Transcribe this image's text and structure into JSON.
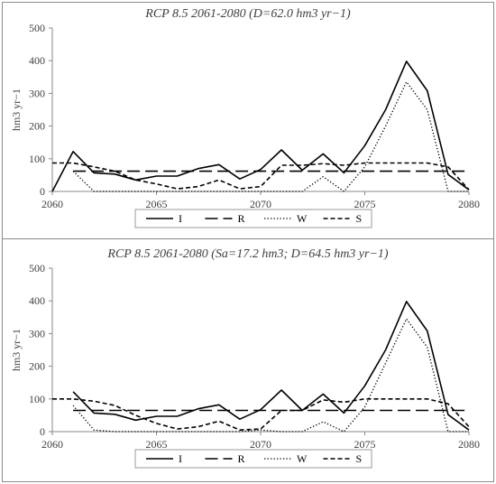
{
  "chart_data": [
    {
      "type": "line",
      "title": "RCP 8.5 2061-2080 (D=62.0 hm3 yr−1)",
      "xlabel": "",
      "ylabel": "hm3 yr−1",
      "xlim": [
        2060,
        2080
      ],
      "ylim": [
        0,
        500
      ],
      "x_ticks": [
        "2060",
        "2065",
        "2070",
        "2075",
        "2080"
      ],
      "y_ticks": [
        "0",
        "100",
        "200",
        "300",
        "400",
        "500"
      ],
      "legend_position": "bottom",
      "grid": false,
      "series": [
        {
          "name": "I",
          "style": "solid",
          "points": [
            [
              2060,
              0
            ],
            [
              2061,
              122
            ],
            [
              2062,
              57
            ],
            [
              2063,
              53
            ],
            [
              2064,
              35
            ],
            [
              2065,
              47
            ],
            [
              2066,
              47
            ],
            [
              2067,
              70
            ],
            [
              2068,
              82
            ],
            [
              2069,
              38
            ],
            [
              2070,
              67
            ],
            [
              2071,
              127
            ],
            [
              2072,
              65
            ],
            [
              2073,
              115
            ],
            [
              2074,
              57
            ],
            [
              2075,
              140
            ],
            [
              2076,
              250
            ],
            [
              2077,
              398
            ],
            [
              2078,
              308
            ],
            [
              2079,
              52
            ],
            [
              2080,
              5
            ]
          ]
        },
        {
          "name": "R",
          "style": "longdash",
          "points": [
            [
              2061,
              62
            ],
            [
              2062,
              62
            ],
            [
              2063,
              62
            ],
            [
              2064,
              62
            ],
            [
              2065,
              62
            ],
            [
              2066,
              62
            ],
            [
              2067,
              62
            ],
            [
              2068,
              62
            ],
            [
              2069,
              62
            ],
            [
              2070,
              62
            ],
            [
              2071,
              62
            ],
            [
              2072,
              62
            ],
            [
              2073,
              62
            ],
            [
              2074,
              62
            ],
            [
              2075,
              62
            ],
            [
              2076,
              62
            ],
            [
              2077,
              62
            ],
            [
              2078,
              62
            ],
            [
              2079,
              62
            ],
            [
              2080,
              62
            ]
          ]
        },
        {
          "name": "W",
          "style": "dotted",
          "points": [
            [
              2061,
              62
            ],
            [
              2062,
              0
            ],
            [
              2063,
              0
            ],
            [
              2064,
              0
            ],
            [
              2065,
              0
            ],
            [
              2066,
              0
            ],
            [
              2067,
              0
            ],
            [
              2068,
              0
            ],
            [
              2069,
              0
            ],
            [
              2070,
              0
            ],
            [
              2071,
              0
            ],
            [
              2072,
              0
            ],
            [
              2073,
              45
            ],
            [
              2074,
              0
            ],
            [
              2075,
              75
            ],
            [
              2076,
              200
            ],
            [
              2077,
              335
            ],
            [
              2078,
              250
            ],
            [
              2079,
              0
            ],
            [
              2080,
              0
            ]
          ]
        },
        {
          "name": "S",
          "style": "shortdash",
          "points": [
            [
              2060,
              87
            ],
            [
              2061,
              87
            ],
            [
              2062,
              75
            ],
            [
              2063,
              62
            ],
            [
              2064,
              35
            ],
            [
              2065,
              23
            ],
            [
              2066,
              8
            ],
            [
              2067,
              15
            ],
            [
              2068,
              35
            ],
            [
              2069,
              8
            ],
            [
              2070,
              15
            ],
            [
              2071,
              80
            ],
            [
              2072,
              80
            ],
            [
              2073,
              85
            ],
            [
              2074,
              80
            ],
            [
              2075,
              87
            ],
            [
              2076,
              87
            ],
            [
              2077,
              87
            ],
            [
              2078,
              87
            ],
            [
              2079,
              75
            ],
            [
              2080,
              5
            ]
          ]
        }
      ]
    },
    {
      "type": "line",
      "title": "RCP 8.5 2061-2080 (Sa=17.2 hm3; D=64.5  hm3 yr−1)",
      "xlabel": "",
      "ylabel": "hm3 yr−1",
      "xlim": [
        2060,
        2080
      ],
      "ylim": [
        0,
        500
      ],
      "x_ticks": [
        "2060",
        "2065",
        "2070",
        "2075",
        "2080"
      ],
      "y_ticks": [
        "0",
        "100",
        "200",
        "300",
        "400",
        "500"
      ],
      "legend_position": "bottom",
      "grid": false,
      "series": [
        {
          "name": "I",
          "style": "solid",
          "points": [
            [
              2061,
              122
            ],
            [
              2062,
              57
            ],
            [
              2063,
              53
            ],
            [
              2064,
              35
            ],
            [
              2065,
              47
            ],
            [
              2066,
              47
            ],
            [
              2067,
              70
            ],
            [
              2068,
              82
            ],
            [
              2069,
              38
            ],
            [
              2070,
              67
            ],
            [
              2071,
              127
            ],
            [
              2072,
              65
            ],
            [
              2073,
              115
            ],
            [
              2074,
              57
            ],
            [
              2075,
              140
            ],
            [
              2076,
              250
            ],
            [
              2077,
              398
            ],
            [
              2078,
              308
            ],
            [
              2079,
              52
            ],
            [
              2080,
              5
            ]
          ]
        },
        {
          "name": "R",
          "style": "longdash",
          "points": [
            [
              2061,
              65
            ],
            [
              2062,
              65
            ],
            [
              2063,
              65
            ],
            [
              2064,
              65
            ],
            [
              2065,
              65
            ],
            [
              2066,
              65
            ],
            [
              2067,
              65
            ],
            [
              2068,
              65
            ],
            [
              2069,
              65
            ],
            [
              2070,
              65
            ],
            [
              2071,
              65
            ],
            [
              2072,
              65
            ],
            [
              2073,
              65
            ],
            [
              2074,
              65
            ],
            [
              2075,
              65
            ],
            [
              2076,
              65
            ],
            [
              2077,
              65
            ],
            [
              2078,
              65
            ],
            [
              2079,
              65
            ],
            [
              2080,
              65
            ]
          ]
        },
        {
          "name": "W",
          "style": "dotted",
          "points": [
            [
              2061,
              80
            ],
            [
              2062,
              5
            ],
            [
              2063,
              0
            ],
            [
              2064,
              0
            ],
            [
              2065,
              0
            ],
            [
              2066,
              0
            ],
            [
              2067,
              0
            ],
            [
              2068,
              0
            ],
            [
              2069,
              0
            ],
            [
              2070,
              5
            ],
            [
              2071,
              0
            ],
            [
              2072,
              0
            ],
            [
              2073,
              30
            ],
            [
              2074,
              0
            ],
            [
              2075,
              75
            ],
            [
              2076,
              210
            ],
            [
              2077,
              345
            ],
            [
              2078,
              258
            ],
            [
              2079,
              0
            ],
            [
              2080,
              0
            ]
          ]
        },
        {
          "name": "S",
          "style": "shortdash",
          "points": [
            [
              2060,
              100
            ],
            [
              2061,
              100
            ],
            [
              2062,
              93
            ],
            [
              2063,
              80
            ],
            [
              2064,
              50
            ],
            [
              2065,
              25
            ],
            [
              2066,
              8
            ],
            [
              2067,
              15
            ],
            [
              2068,
              32
            ],
            [
              2069,
              5
            ],
            [
              2070,
              8
            ],
            [
              2071,
              65
            ],
            [
              2072,
              65
            ],
            [
              2073,
              97
            ],
            [
              2074,
              90
            ],
            [
              2075,
              100
            ],
            [
              2076,
              100
            ],
            [
              2077,
              100
            ],
            [
              2078,
              100
            ],
            [
              2079,
              85
            ],
            [
              2080,
              15
            ]
          ]
        }
      ]
    }
  ]
}
